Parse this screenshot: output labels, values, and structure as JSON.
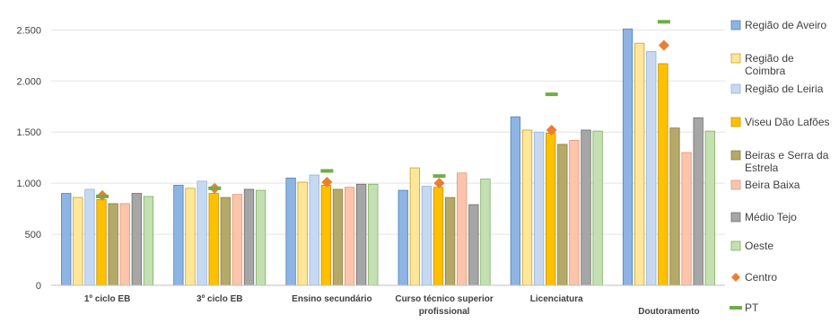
{
  "chart_data": {
    "type": "bar",
    "title": "",
    "xlabel": "",
    "ylabel": "",
    "ylim": [
      0,
      2600
    ],
    "yticks": [
      {
        "value": 0,
        "label": "0"
      },
      {
        "value": 500,
        "label": "500"
      },
      {
        "value": 1000,
        "label": "1.000"
      },
      {
        "value": 1500,
        "label": "1.500"
      },
      {
        "value": 2000,
        "label": "2.000"
      },
      {
        "value": 2500,
        "label": "2.500"
      }
    ],
    "grid": true,
    "legend_position": "right",
    "categories": [
      [
        "1º ciclo EB"
      ],
      [
        "3º ciclo EB"
      ],
      [
        "Ensino secundário"
      ],
      [
        "Curso técnico superior",
        "profissional"
      ],
      [
        "Licenciatura"
      ],
      [
        "",
        "Doutoramento"
      ]
    ],
    "bar_series": [
      {
        "name": "Região de Aveiro",
        "fill": "#8eb4e3",
        "stroke": "#4f81bd",
        "values": [
          900,
          980,
          1050,
          930,
          1650,
          2510
        ]
      },
      {
        "name": "Região de Coimbra",
        "fill": "#ffe699",
        "stroke": "#c9a227",
        "values": [
          860,
          950,
          1010,
          1150,
          1520,
          2370
        ]
      },
      {
        "name": "Região de Leiria",
        "fill": "#c6d9f1",
        "stroke": "#95b3d7",
        "values": [
          940,
          1020,
          1080,
          970,
          1500,
          2290
        ]
      },
      {
        "name": "Viseu Dão Lafões",
        "fill": "#ffc000",
        "stroke": "#c79100",
        "values": [
          840,
          900,
          980,
          960,
          1490,
          2170
        ]
      },
      {
        "name": "Beiras e Serra da Estrela",
        "fill": "#b5a96a",
        "stroke": "#8a7f3e",
        "values": [
          800,
          860,
          940,
          860,
          1380,
          1540
        ]
      },
      {
        "name": "Beira Baixa",
        "fill": "#fbc4ab",
        "stroke": "#e39673",
        "values": [
          800,
          890,
          960,
          1100,
          1420,
          1300
        ]
      },
      {
        "name": "Médio Tejo",
        "fill": "#a6a6a6",
        "stroke": "#6e6e6e",
        "values": [
          900,
          940,
          990,
          790,
          1520,
          1640
        ]
      },
      {
        "name": "Oeste",
        "fill": "#c4e0b2",
        "stroke": "#7fae5e",
        "values": [
          870,
          930,
          990,
          1040,
          1510,
          1510
        ]
      }
    ],
    "marker_series": [
      {
        "name": "Centro",
        "color": "#ed7d31",
        "shape": "diamond",
        "values": [
          880,
          950,
          1010,
          1000,
          1520,
          2350
        ]
      },
      {
        "name": "PT",
        "color": "#70ad47",
        "shape": "dash",
        "values": [
          870,
          950,
          1120,
          1070,
          1870,
          2580
        ]
      }
    ],
    "legend": [
      {
        "lines": [
          "Região de Aveiro"
        ],
        "kind": "box",
        "series": 0
      },
      {
        "lines": [
          "Região de",
          "Coimbra"
        ],
        "kind": "box",
        "series": 1
      },
      {
        "lines": [
          "Região de Leiria"
        ],
        "kind": "box",
        "series": 2
      },
      {
        "lines": [
          "Viseu Dão Lafões"
        ],
        "kind": "box",
        "series": 3
      },
      {
        "lines": [
          "Beiras e Serra da",
          "Estrela"
        ],
        "kind": "box",
        "series": 4
      },
      {
        "lines": [
          "Beira Baixa"
        ],
        "kind": "box",
        "series": 5
      },
      {
        "lines": [
          "Médio Tejo"
        ],
        "kind": "box",
        "series": 6
      },
      {
        "lines": [
          "Oeste"
        ],
        "kind": "box",
        "series": 7
      },
      {
        "lines": [
          "Centro"
        ],
        "kind": "diamond",
        "series": 0
      },
      {
        "lines": [
          "PT"
        ],
        "kind": "dash",
        "series": 1
      }
    ]
  }
}
